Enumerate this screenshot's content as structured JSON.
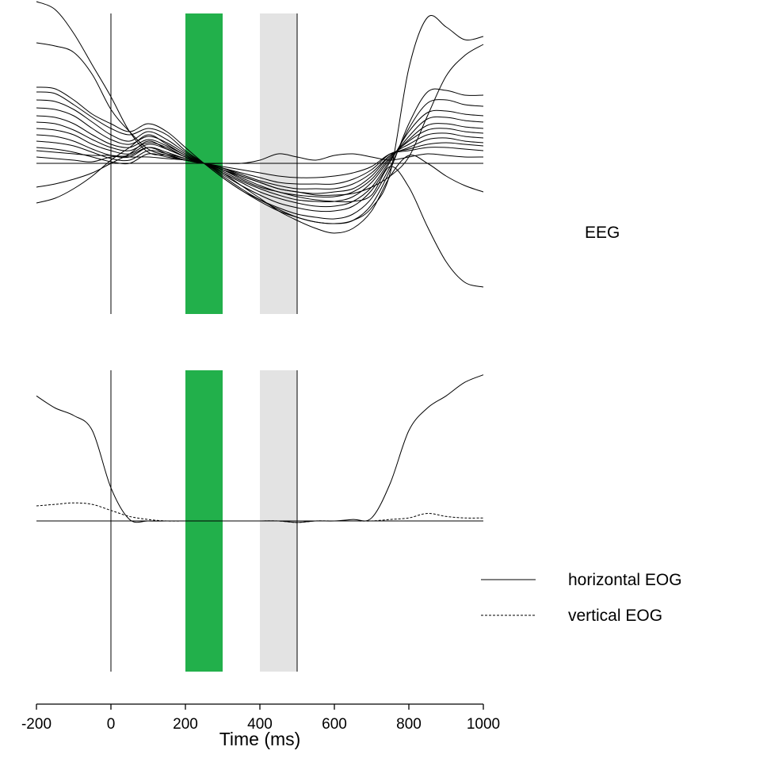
{
  "chart_data": [
    {
      "type": "line",
      "panel_label": "EEG",
      "xlim": [
        -200,
        1000
      ],
      "ylim": [
        -1.0,
        1.0
      ],
      "shaded_windows": [
        {
          "x0": 200,
          "x1": 300,
          "color": "#22b04b"
        },
        {
          "x0": 400,
          "x1": 500,
          "color": "#e3e3e3"
        }
      ],
      "vertical_lines_at": [
        0,
        500
      ],
      "baseline_y": 0,
      "grid": false,
      "line_color": "#000000",
      "x": [
        -200,
        -150,
        -100,
        -50,
        0,
        50,
        100,
        150,
        200,
        250,
        300,
        350,
        400,
        450,
        500,
        550,
        600,
        650,
        700,
        750,
        800,
        850,
        900,
        950,
        1000
      ],
      "series": [
        {
          "values": [
            1.02,
            0.97,
            0.82,
            0.62,
            0.42,
            0.2,
            0.07,
            0.05,
            0.02,
            0.0,
            -0.03,
            -0.08,
            -0.12,
            -0.16,
            -0.18,
            -0.2,
            -0.2,
            -0.19,
            -0.15,
            -0.08,
            0.04,
            0.3,
            0.55,
            0.68,
            0.75
          ]
        },
        {
          "values": [
            0.76,
            0.74,
            0.7,
            0.56,
            0.34,
            0.2,
            0.09,
            0.05,
            0.02,
            0.0,
            -0.08,
            -0.16,
            -0.23,
            -0.29,
            -0.34,
            -0.37,
            -0.38,
            -0.36,
            -0.28,
            -0.06,
            0.6,
            0.92,
            0.86,
            0.78,
            0.8
          ]
        },
        {
          "values": [
            0.48,
            0.47,
            0.4,
            0.31,
            0.25,
            0.2,
            0.25,
            0.2,
            0.1,
            0.0,
            -0.09,
            -0.17,
            -0.24,
            -0.3,
            -0.34,
            -0.37,
            -0.38,
            -0.36,
            -0.26,
            -0.04,
            0.25,
            0.45,
            0.46,
            0.43,
            0.43
          ]
        },
        {
          "values": [
            0.45,
            0.44,
            0.37,
            0.29,
            0.22,
            0.18,
            0.22,
            0.18,
            0.08,
            0.0,
            -0.09,
            -0.17,
            -0.23,
            -0.28,
            -0.32,
            -0.34,
            -0.35,
            -0.32,
            -0.22,
            -0.02,
            0.22,
            0.38,
            0.4,
            0.37,
            0.36
          ]
        },
        {
          "values": [
            0.4,
            0.39,
            0.34,
            0.26,
            0.18,
            0.14,
            0.2,
            0.15,
            0.07,
            0.0,
            -0.07,
            -0.14,
            -0.2,
            -0.25,
            -0.28,
            -0.3,
            -0.3,
            -0.27,
            -0.17,
            0.01,
            0.2,
            0.32,
            0.33,
            0.31,
            0.3
          ]
        },
        {
          "values": [
            0.35,
            0.34,
            0.3,
            0.22,
            0.15,
            0.12,
            0.17,
            0.13,
            0.06,
            0.0,
            -0.06,
            -0.12,
            -0.18,
            -0.22,
            -0.25,
            -0.27,
            -0.27,
            -0.24,
            -0.15,
            0.02,
            0.17,
            0.28,
            0.29,
            0.27,
            0.26
          ]
        },
        {
          "values": [
            0.3,
            0.29,
            0.25,
            0.18,
            0.12,
            0.1,
            0.15,
            0.11,
            0.05,
            0.0,
            -0.05,
            -0.11,
            -0.16,
            -0.2,
            -0.23,
            -0.24,
            -0.24,
            -0.21,
            -0.12,
            0.03,
            0.15,
            0.24,
            0.25,
            0.23,
            0.22
          ]
        },
        {
          "values": [
            0.26,
            0.25,
            0.21,
            0.15,
            0.1,
            0.08,
            0.13,
            0.1,
            0.04,
            0.0,
            -0.04,
            -0.09,
            -0.14,
            -0.18,
            -0.2,
            -0.21,
            -0.21,
            -0.18,
            -0.1,
            0.04,
            0.14,
            0.21,
            0.22,
            0.2,
            0.19
          ]
        },
        {
          "values": [
            0.22,
            0.21,
            0.18,
            0.12,
            0.08,
            0.06,
            0.12,
            0.09,
            0.04,
            0.0,
            -0.04,
            -0.08,
            -0.12,
            -0.16,
            -0.18,
            -0.19,
            -0.18,
            -0.16,
            -0.08,
            0.05,
            0.12,
            0.18,
            0.19,
            0.17,
            0.16
          ]
        },
        {
          "values": [
            0.18,
            0.17,
            0.14,
            0.09,
            0.05,
            0.04,
            0.1,
            0.07,
            0.03,
            0.0,
            -0.03,
            -0.07,
            -0.11,
            -0.14,
            -0.16,
            -0.16,
            -0.16,
            -0.13,
            -0.06,
            0.05,
            0.1,
            0.15,
            0.16,
            0.14,
            0.13
          ]
        },
        {
          "values": [
            0.14,
            0.13,
            0.11,
            0.07,
            0.03,
            0.02,
            0.08,
            0.06,
            0.03,
            0.0,
            -0.03,
            -0.06,
            -0.09,
            -0.12,
            -0.13,
            -0.13,
            -0.13,
            -0.1,
            -0.04,
            0.06,
            0.09,
            0.12,
            0.13,
            0.12,
            0.11
          ]
        },
        {
          "values": [
            0.1,
            0.09,
            0.07,
            0.04,
            0.01,
            0.0,
            0.06,
            0.04,
            0.02,
            0.0,
            -0.02,
            -0.04,
            -0.06,
            -0.08,
            -0.09,
            -0.09,
            -0.08,
            -0.06,
            -0.02,
            0.06,
            0.08,
            0.1,
            0.1,
            0.09,
            0.08
          ]
        },
        {
          "values": [
            0.04,
            0.03,
            0.02,
            0.01,
            0.04,
            0.05,
            0.1,
            0.06,
            0.02,
            0.0,
            0.0,
            0.0,
            0.02,
            0.06,
            0.04,
            0.02,
            0.05,
            0.06,
            0.04,
            0.02,
            0.04,
            0.06,
            0.05,
            0.04,
            0.04
          ]
        },
        {
          "values": [
            -0.25,
            -0.22,
            -0.16,
            -0.08,
            0.02,
            0.1,
            0.18,
            0.12,
            0.05,
            0.0,
            -0.04,
            -0.1,
            -0.15,
            -0.18,
            -0.21,
            -0.23,
            -0.24,
            -0.24,
            -0.2,
            -0.02,
            -0.15,
            -0.4,
            -0.62,
            -0.75,
            -0.78
          ]
        },
        {
          "values": [
            -0.15,
            -0.13,
            -0.1,
            -0.06,
            0.0,
            0.06,
            0.14,
            0.09,
            0.04,
            0.0,
            -0.06,
            -0.14,
            -0.22,
            -0.3,
            -0.36,
            -0.41,
            -0.44,
            -0.41,
            -0.3,
            -0.08,
            0.05,
            0.0,
            -0.08,
            -0.14,
            -0.18
          ]
        },
        {
          "values": [
            0.08,
            0.07,
            0.06,
            0.05,
            0.05,
            0.04,
            0.04,
            0.03,
            0.02,
            0.0,
            0.0,
            0.0,
            0.0,
            0.0,
            0.0,
            0.0,
            0.0,
            0.0,
            0.0,
            0.0,
            0.0,
            0.0,
            0.0,
            0.0,
            0.0
          ]
        }
      ]
    },
    {
      "type": "line",
      "xlabel": "Time (ms)",
      "xlim": [
        -200,
        1000
      ],
      "xticks": [
        -200,
        0,
        200,
        400,
        600,
        800,
        1000
      ],
      "ylim": [
        -1.0,
        1.0
      ],
      "shaded_windows": [
        {
          "x0": 200,
          "x1": 300,
          "color": "#22b04b"
        },
        {
          "x0": 400,
          "x1": 500,
          "color": "#e3e3e3"
        }
      ],
      "vertical_lines_at": [
        0,
        500
      ],
      "baseline_y": 0,
      "grid": false,
      "legend_position": "right",
      "x": [
        -200,
        -150,
        -100,
        -50,
        0,
        50,
        100,
        150,
        200,
        250,
        300,
        350,
        400,
        450,
        500,
        550,
        600,
        650,
        700,
        750,
        800,
        850,
        900,
        950,
        1000
      ],
      "series": [
        {
          "name": "horizontal EOG",
          "dash": "solid",
          "values": [
            0.83,
            0.75,
            0.7,
            0.6,
            0.22,
            0.01,
            0.0,
            0.0,
            0.0,
            0.0,
            0.0,
            0.0,
            0.0,
            0.0,
            -0.01,
            0.0,
            0.0,
            0.01,
            0.02,
            0.25,
            0.6,
            0.75,
            0.83,
            0.92,
            0.97
          ]
        },
        {
          "name": "vertical EOG",
          "dash": "dashed",
          "values": [
            0.1,
            0.11,
            0.12,
            0.11,
            0.07,
            0.03,
            0.01,
            0.0,
            0.0,
            0.0,
            0.0,
            0.0,
            0.0,
            0.0,
            -0.01,
            0.0,
            0.0,
            0.0,
            0.0,
            0.01,
            0.02,
            0.05,
            0.03,
            0.02,
            0.02
          ]
        }
      ]
    }
  ]
}
